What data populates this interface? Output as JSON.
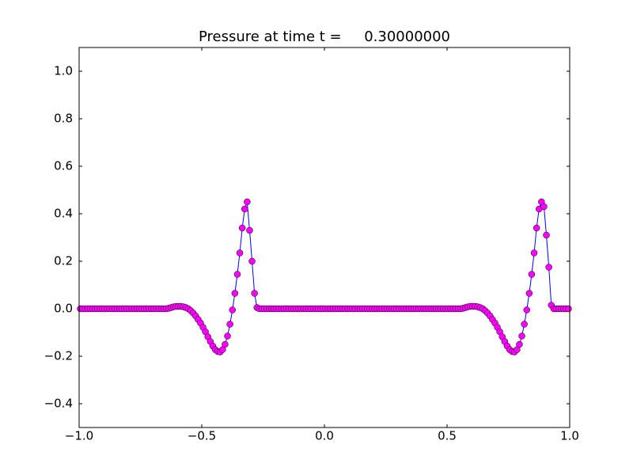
{
  "chart_data": {
    "type": "line",
    "title": "Pressure at time t =     0.30000000",
    "x": [
      -0.995,
      -0.985,
      -0.975,
      -0.965,
      -0.955,
      -0.945,
      -0.935,
      -0.925,
      -0.915,
      -0.905,
      -0.895,
      -0.885,
      -0.875,
      -0.865,
      -0.855,
      -0.845,
      -0.835,
      -0.825,
      -0.815,
      -0.805,
      -0.795,
      -0.785,
      -0.775,
      -0.765,
      -0.755,
      -0.745,
      -0.735,
      -0.725,
      -0.715,
      -0.705,
      -0.695,
      -0.685,
      -0.675,
      -0.665,
      -0.655,
      -0.645,
      -0.635,
      -0.625,
      -0.615,
      -0.605,
      -0.595,
      -0.585,
      -0.575,
      -0.565,
      -0.555,
      -0.545,
      -0.535,
      -0.525,
      -0.515,
      -0.505,
      -0.495,
      -0.485,
      -0.475,
      -0.465,
      -0.455,
      -0.445,
      -0.435,
      -0.425,
      -0.415,
      -0.405,
      -0.395,
      -0.385,
      -0.375,
      -0.365,
      -0.355,
      -0.345,
      -0.335,
      -0.325,
      -0.315,
      -0.305,
      -0.295,
      -0.285,
      -0.275,
      -0.265,
      -0.255,
      -0.245,
      -0.235,
      -0.225,
      -0.215,
      -0.205,
      -0.195,
      -0.185,
      -0.175,
      -0.165,
      -0.155,
      -0.145,
      -0.135,
      -0.125,
      -0.115,
      -0.105,
      -0.095,
      -0.085,
      -0.075,
      -0.065,
      -0.055,
      -0.045,
      -0.035,
      -0.025,
      -0.015,
      -0.005,
      0.005,
      0.015,
      0.025,
      0.035,
      0.045,
      0.055,
      0.065,
      0.075,
      0.085,
      0.095,
      0.105,
      0.115,
      0.125,
      0.135,
      0.145,
      0.155,
      0.165,
      0.175,
      0.185,
      0.195,
      0.205,
      0.215,
      0.225,
      0.235,
      0.245,
      0.255,
      0.265,
      0.275,
      0.285,
      0.295,
      0.305,
      0.315,
      0.325,
      0.335,
      0.345,
      0.355,
      0.365,
      0.375,
      0.385,
      0.395,
      0.405,
      0.415,
      0.425,
      0.435,
      0.445,
      0.455,
      0.465,
      0.475,
      0.485,
      0.495,
      0.505,
      0.515,
      0.525,
      0.535,
      0.545,
      0.555,
      0.565,
      0.575,
      0.585,
      0.595,
      0.605,
      0.615,
      0.625,
      0.635,
      0.645,
      0.655,
      0.665,
      0.675,
      0.685,
      0.695,
      0.705,
      0.715,
      0.725,
      0.735,
      0.745,
      0.755,
      0.765,
      0.775,
      0.785,
      0.795,
      0.805,
      0.815,
      0.825,
      0.835,
      0.845,
      0.855,
      0.865,
      0.875,
      0.885,
      0.895,
      0.905,
      0.915,
      0.925,
      0.935,
      0.945,
      0.955,
      0.965,
      0.975,
      0.985,
      0.995
    ],
    "values": [
      0,
      0,
      0,
      0,
      0,
      0,
      0,
      0,
      0,
      0,
      0,
      0,
      0,
      0,
      0,
      0,
      0,
      0,
      0,
      0,
      0,
      0,
      0,
      0,
      0,
      0,
      0,
      0,
      0,
      0,
      0,
      0,
      0,
      0,
      0,
      0,
      0.002,
      0.005,
      0.008,
      0.01,
      0.01,
      0.01,
      0.008,
      0.005,
      0,
      -0.008,
      -0.018,
      -0.03,
      -0.045,
      -0.06,
      -0.078,
      -0.097,
      -0.118,
      -0.138,
      -0.157,
      -0.172,
      -0.18,
      -0.182,
      -0.172,
      -0.15,
      -0.115,
      -0.065,
      -0.005,
      0.065,
      0.145,
      0.235,
      0.34,
      0.42,
      0.45,
      0.33,
      0.2,
      0.065,
      0.005,
      0,
      0,
      0,
      0,
      0,
      0,
      0,
      0,
      0,
      0,
      0,
      0,
      0,
      0,
      0,
      0,
      0,
      0,
      0,
      0,
      0,
      0,
      0,
      0,
      0,
      0,
      0,
      0,
      0,
      0,
      0,
      0,
      0,
      0,
      0,
      0,
      0,
      0,
      0,
      0,
      0,
      0,
      0,
      0,
      0,
      0,
      0,
      0,
      0,
      0,
      0,
      0,
      0,
      0,
      0,
      0,
      0,
      0,
      0,
      0,
      0,
      0,
      0,
      0,
      0,
      0,
      0,
      0,
      0,
      0,
      0,
      0,
      0,
      0,
      0,
      0,
      0,
      0,
      0,
      0,
      0,
      0,
      0,
      0.002,
      0.005,
      0.008,
      0.01,
      0.01,
      0.01,
      0.008,
      0.005,
      0,
      -0.008,
      -0.018,
      -0.03,
      -0.045,
      -0.06,
      -0.078,
      -0.097,
      -0.118,
      -0.138,
      -0.157,
      -0.172,
      -0.18,
      -0.182,
      -0.172,
      -0.15,
      -0.115,
      -0.065,
      -0.005,
      0.065,
      0.145,
      0.235,
      0.34,
      0.42,
      0.45,
      0.43,
      0.31,
      0.175,
      0.015,
      0,
      0,
      0,
      0,
      0,
      0,
      0
    ],
    "line_color": "#0000ff",
    "marker_color": "#ff00ff",
    "xlim": [
      -1,
      1
    ],
    "xticks": [
      {
        "value": -1,
        "label": "−1.0"
      },
      {
        "value": -0.5,
        "label": "−0.5"
      },
      {
        "value": 0,
        "label": "0.0"
      },
      {
        "value": 0.5,
        "label": "0.5"
      },
      {
        "value": 1,
        "label": "1.0"
      }
    ],
    "ylim": [
      -0.5,
      1.1
    ],
    "yticks": [
      {
        "value": -0.4,
        "label": "−0.4"
      },
      {
        "value": -0.2,
        "label": "−0.2"
      },
      {
        "value": 0,
        "label": "0.0"
      },
      {
        "value": 0.2,
        "label": "0.2"
      },
      {
        "value": 0.4,
        "label": "0.4"
      },
      {
        "value": 0.6,
        "label": "0.6"
      },
      {
        "value": 0.8,
        "label": "0.8"
      },
      {
        "value": 1,
        "label": "1.0"
      }
    ]
  }
}
